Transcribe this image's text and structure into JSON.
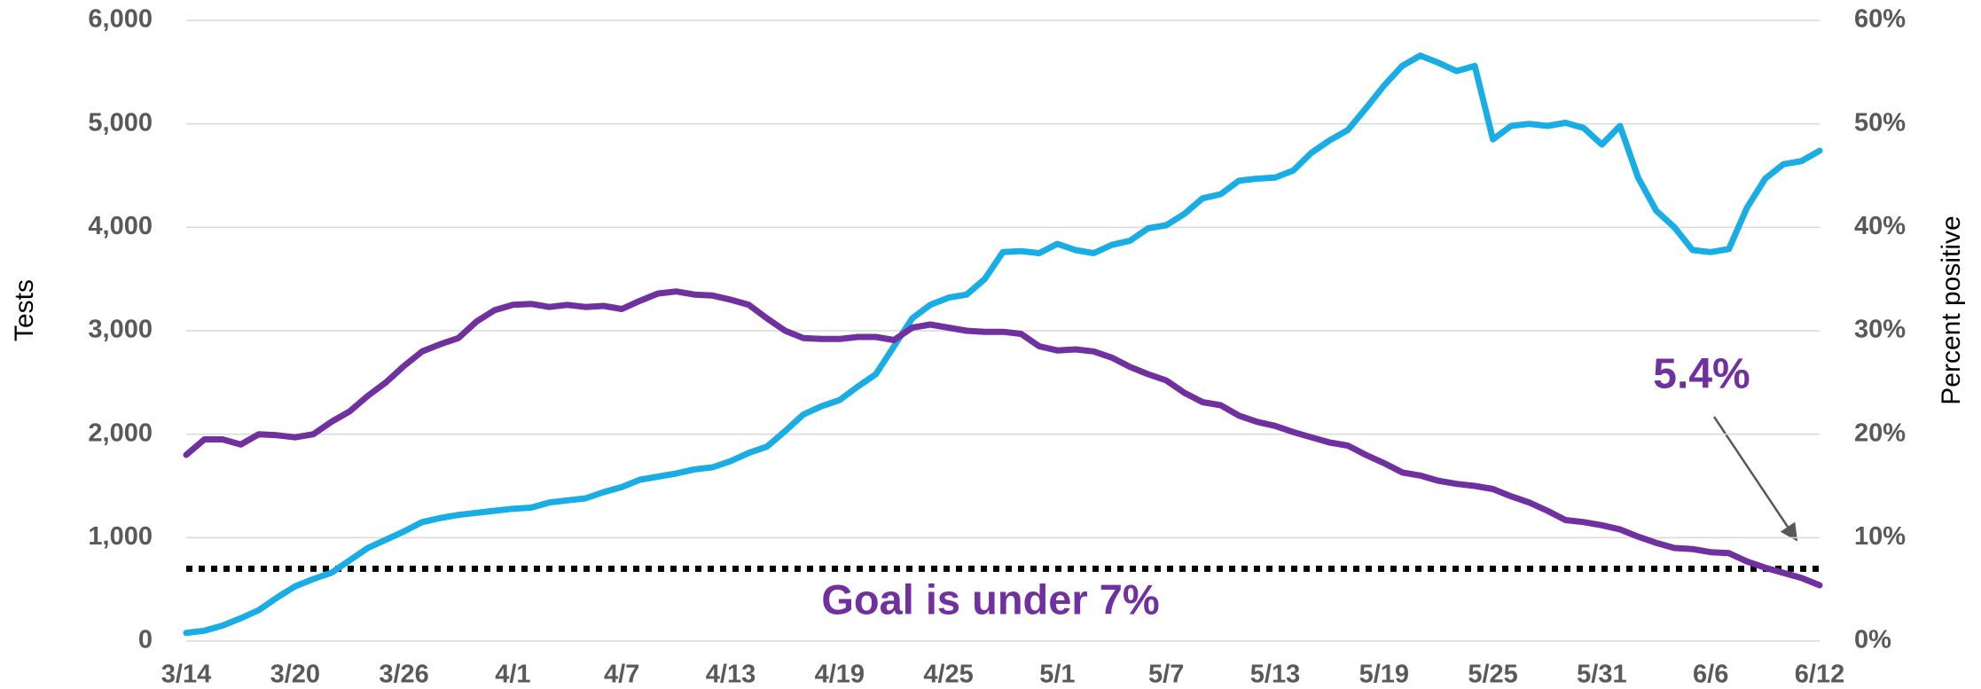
{
  "chart_data": {
    "type": "line",
    "categories": [
      "3/14",
      null,
      null,
      null,
      null,
      null,
      "3/20",
      null,
      null,
      null,
      null,
      null,
      "3/26",
      null,
      null,
      null,
      null,
      null,
      "4/1",
      null,
      null,
      null,
      null,
      null,
      "4/7",
      null,
      null,
      null,
      null,
      null,
      "4/13",
      null,
      null,
      null,
      null,
      null,
      "4/19",
      null,
      null,
      null,
      null,
      null,
      "4/25",
      null,
      null,
      null,
      null,
      null,
      "5/1",
      null,
      null,
      null,
      null,
      null,
      "5/7",
      null,
      null,
      null,
      null,
      null,
      "5/13",
      null,
      null,
      null,
      null,
      null,
      "5/19",
      null,
      null,
      null,
      null,
      null,
      "5/25",
      null,
      null,
      null,
      null,
      null,
      "5/31",
      null,
      null,
      null,
      null,
      null,
      "6/6",
      null,
      null,
      null,
      null,
      null,
      "6/12"
    ],
    "series": [
      {
        "name": "Tests",
        "color": "#19ade6",
        "values": [
          80,
          100,
          150,
          220,
          300,
          420,
          530,
          600,
          660,
          780,
          900,
          980,
          1060,
          1150,
          1190,
          1220,
          1240,
          1260,
          1280,
          1290,
          1340,
          1360,
          1380,
          1440,
          1490,
          1560,
          1590,
          1620,
          1660,
          1680,
          1740,
          1820,
          1880,
          2030,
          2190,
          2270,
          2330,
          2460,
          2580,
          2850,
          3120,
          3250,
          3320,
          3350,
          3500,
          3760,
          3770,
          3750,
          3840,
          3780,
          3750,
          3830,
          3870,
          3990,
          4020,
          4130,
          4280,
          4320,
          4450,
          4470,
          4480,
          4550,
          4720,
          4840,
          4940,
          5150,
          5370,
          5560,
          5660,
          5590,
          5510,
          5560,
          4850,
          4980,
          5000,
          4980,
          5010,
          4960,
          4800,
          4980,
          4480,
          4160,
          4000,
          3780,
          3760,
          3790,
          4190,
          4470,
          4610,
          4640,
          4740
        ]
      },
      {
        "name": "Percent positive",
        "color": "#7030a0",
        "axis": "y2",
        "values": [
          18,
          19.5,
          19.5,
          19,
          20,
          19.9,
          19.7,
          20,
          21.2,
          22.2,
          23.7,
          25,
          26.6,
          28,
          28.7,
          29.3,
          30.9,
          32,
          32.5,
          32.6,
          32.3,
          32.5,
          32.3,
          32.4,
          32.1,
          32.9,
          33.6,
          33.8,
          33.5,
          33.4,
          33,
          32.5,
          31.2,
          30,
          29.3,
          29.2,
          29.2,
          29.4,
          29.4,
          29.1,
          30.3,
          30.6,
          30.3,
          30,
          29.9,
          29.9,
          29.7,
          28.5,
          28.1,
          28.2,
          28,
          27.4,
          26.5,
          25.8,
          25.2,
          24,
          23.1,
          22.8,
          21.8,
          21.2,
          20.8,
          20.2,
          19.7,
          19.2,
          18.9,
          18,
          17.2,
          16.3,
          16,
          15.5,
          15.2,
          15,
          14.7,
          14,
          13.4,
          12.6,
          11.7,
          11.5,
          11.2,
          10.8,
          10.1,
          9.5,
          9,
          8.9,
          8.6,
          8.5,
          7.7,
          7.1,
          6.6,
          6.1,
          5.4
        ]
      }
    ],
    "ylabel": "Tests",
    "y2label": "Percent positive",
    "ylim": [
      0,
      6000
    ],
    "yticks": [
      0,
      {
        "value": 1000,
        "label": "1,000"
      },
      {
        "value": 2000,
        "label": "2,000"
      },
      {
        "value": 3000,
        "label": "3,000"
      },
      {
        "value": 4000,
        "label": "4,000"
      },
      {
        "value": 5000,
        "label": "5,000"
      },
      {
        "value": 6000,
        "label": "6,000"
      }
    ],
    "y2lim": [
      0,
      60
    ],
    "y2ticks": [
      {
        "value": 0,
        "label": "0%"
      },
      {
        "value": 10,
        "label": "10%"
      },
      {
        "value": 20,
        "label": "20%"
      },
      {
        "value": 30,
        "label": "30%"
      },
      {
        "value": 40,
        "label": "40%"
      },
      {
        "value": 50,
        "label": "50%"
      },
      {
        "value": 60,
        "label": "60%"
      }
    ],
    "grid": true,
    "goal_line": {
      "value": 7,
      "axis": "y2",
      "color": "#000000"
    },
    "annotations": [
      {
        "text": "5.4%",
        "color": "#7030a0"
      },
      {
        "text": "Goal is under 7%",
        "color": "#7030a0"
      }
    ]
  }
}
